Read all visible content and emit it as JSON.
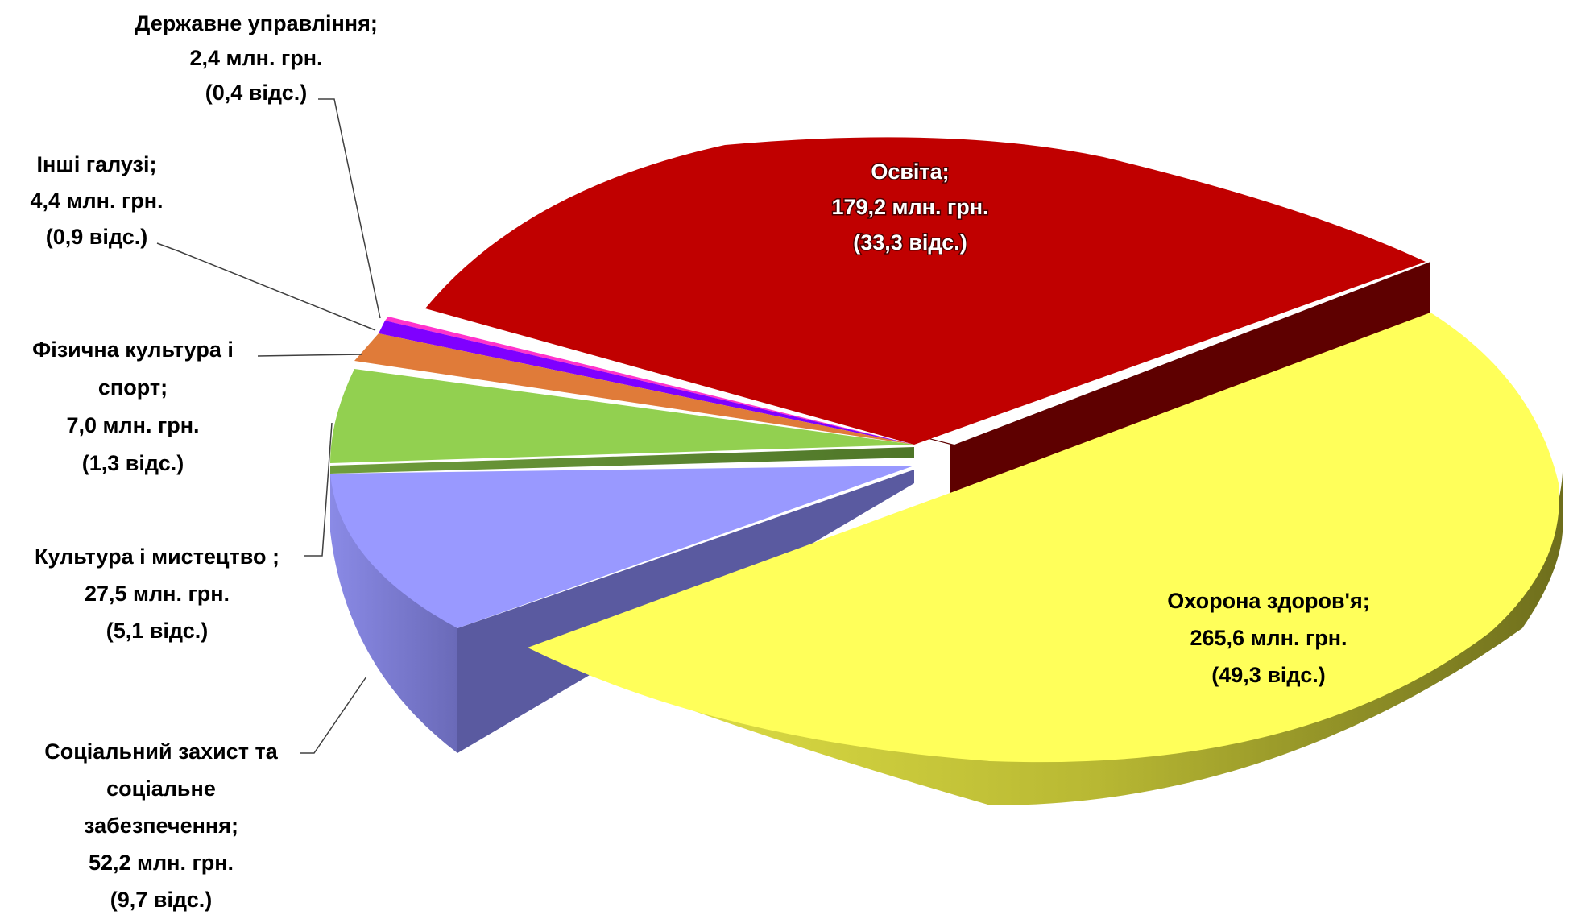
{
  "chart_data": {
    "type": "pie",
    "style": "3d-exploded",
    "slices": [
      {
        "name": "Охорона здоров'я",
        "value": 265.6,
        "percent": 49.3,
        "color": "#ffff5a",
        "label_lines": [
          "Охорона здоров'я;",
          "265,6 млн. грн.",
          "(49,3 відс.)"
        ]
      },
      {
        "name": "Освіта",
        "value": 179.2,
        "percent": 33.3,
        "color": "#c00000",
        "label_lines": [
          "Освіта;",
          "179,2 млн. грн.",
          "(33,3 відс.)"
        ]
      },
      {
        "name": "Державне управління",
        "value": 2.4,
        "percent": 0.4,
        "color": "#ff33cc",
        "label_lines": [
          "Державне управління;",
          "2,4 млн. грн.",
          "(0,4 відс.)"
        ]
      },
      {
        "name": "Інші галузі",
        "value": 4.4,
        "percent": 0.9,
        "color": "#7f00ff",
        "label_lines": [
          "Інші галузі;",
          "4,4 млн. грн.",
          "(0,9 відс.)"
        ]
      },
      {
        "name": "Фізична культура і спорт",
        "value": 7.0,
        "percent": 1.3,
        "color": "#e07b39",
        "label_lines": [
          "Фізична культура і",
          "спорт;",
          "7,0 млн. грн.",
          "(1,3 відс.)"
        ]
      },
      {
        "name": "Культура і мистецтво",
        "value": 27.5,
        "percent": 5.1,
        "color": "#92d050",
        "label_lines": [
          "Культура і мистецтво ;",
          "27,5 млн. грн.",
          "(5,1 відс.)"
        ]
      },
      {
        "name": "Соціальний захист та соціальне забезпечення",
        "value": 52.2,
        "percent": 9.7,
        "color": "#9999ff",
        "label_lines": [
          "Соціальний  захист та",
          "соціальне",
          "забезпечення;",
          "52,2 млн. грн.",
          "(9,7 відс.)"
        ]
      }
    ]
  }
}
